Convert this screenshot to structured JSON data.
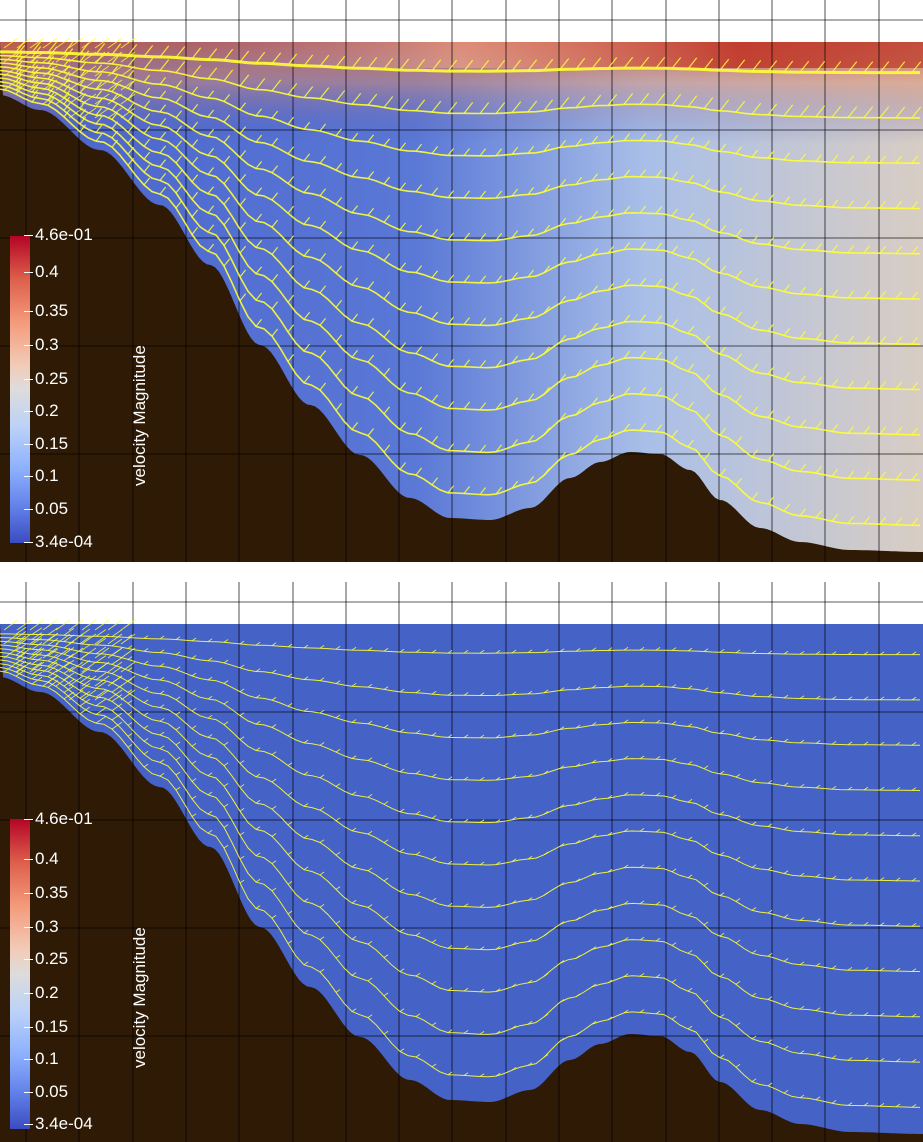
{
  "panels": [
    {
      "name": "top",
      "colorbar": {
        "title": "velocity Magnitude",
        "max_label": "4.6e-01",
        "min_label": "3.4e-04",
        "ticks": [
          "0.4",
          "0.35",
          "0.3",
          "0.25",
          "0.2",
          "0.15",
          "0.1",
          "0.05"
        ]
      }
    },
    {
      "name": "bottom",
      "colorbar": {
        "title": "velocity Magnitude",
        "max_label": "4.6e-01",
        "min_label": "3.4e-04",
        "ticks": [
          "0.4",
          "0.35",
          "0.3",
          "0.25",
          "0.2",
          "0.15",
          "0.1",
          "0.05"
        ]
      }
    }
  ],
  "colors": {
    "bathymetry": "#2e1a05",
    "low_velocity": "#3b4cc0",
    "high_velocity": "#b40426",
    "vectors": "#ffff33",
    "grid": "#000000"
  }
}
